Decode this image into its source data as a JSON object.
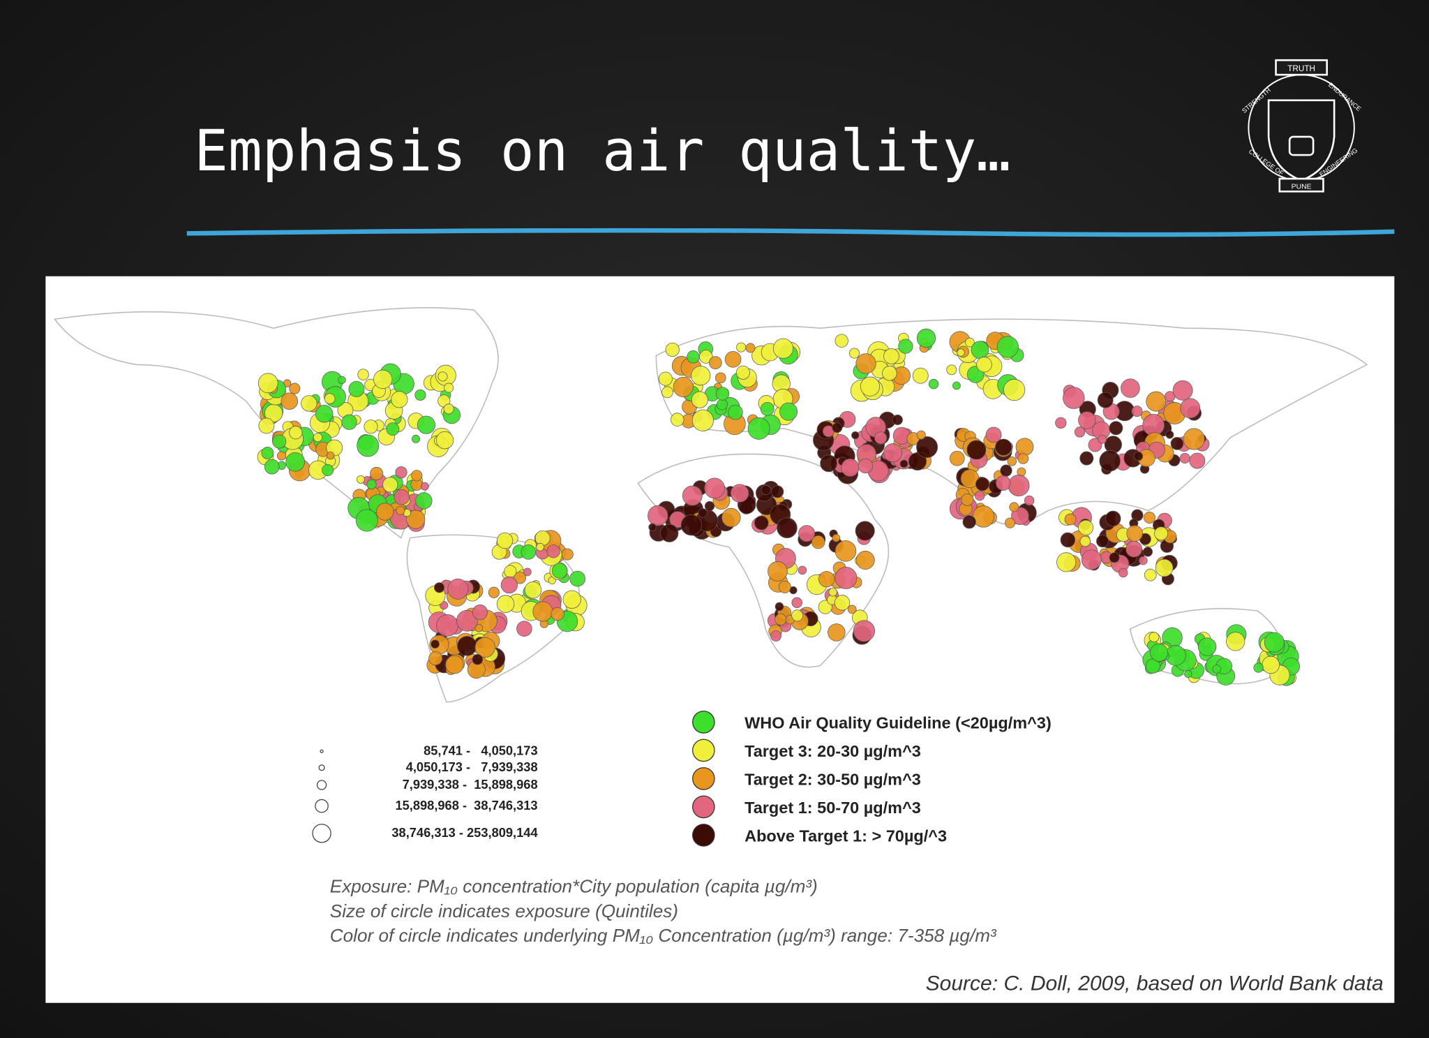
{
  "slide": {
    "title": "Emphasis on air quality…",
    "logo": {
      "top": "TRUTH",
      "left": "STRENGTH",
      "right": "ENDURANCE",
      "bottom_left": "COLLEGE OF",
      "bottom_right": "ENGINEERING",
      "base": "PUNE"
    },
    "size_legend": [
      "85,741 -   4,050,173",
      "4,050,173 -   7,939,338",
      "7,939,338 -  15,898,968",
      "15,898,968 -  38,746,313",
      "38,746,313 - 253,809,144"
    ],
    "color_legend": [
      {
        "label": "WHO Air Quality Guideline (<20µg/m^3)",
        "color": "#3ede2c"
      },
      {
        "label": "Target 3: 20-30 µg/m^3",
        "color": "#f0f03a"
      },
      {
        "label": "Target 2: 30-50 µg/m^3",
        "color": "#e8961e"
      },
      {
        "label": "Target 1: 50-70 µg/m^3",
        "color": "#e2667e"
      },
      {
        "label": "Above Target 1: > 70µg/^3",
        "color": "#3d0b06"
      }
    ],
    "notes": [
      "Exposure: PM₁₀ concentration*City population (capita µg/m³)",
      "Size of circle indicates exposure (Quintiles)",
      "Color of circle indicates underlying PM₁₀ Concentration (µg/m³) range: 7-358 µg/m³"
    ],
    "source": "Source: C. Doll, 2009, based on World Bank data"
  }
}
